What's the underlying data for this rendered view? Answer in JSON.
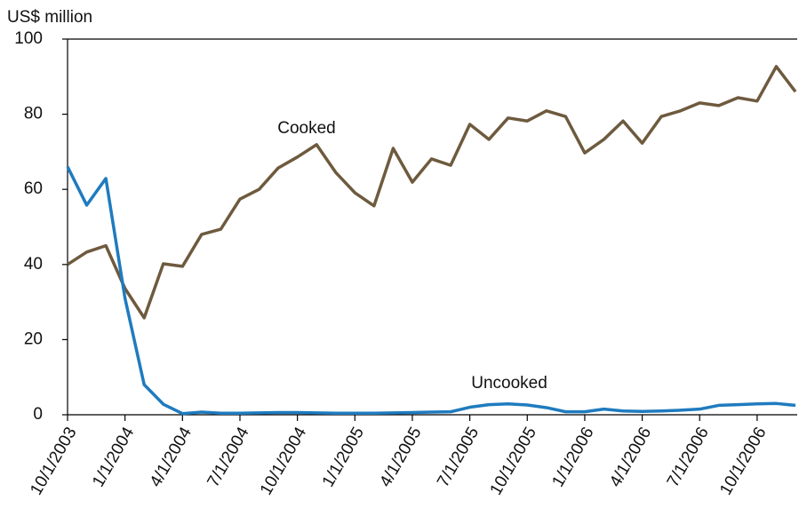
{
  "chart_data": {
    "type": "line",
    "y_label": "US$ million",
    "categories": [
      "10/1/2003",
      null,
      null,
      "1/1/2004",
      null,
      null,
      "4/1/2004",
      null,
      null,
      "7/1/2004",
      null,
      null,
      "10/1/2004",
      null,
      null,
      "1/1/2005",
      null,
      null,
      "4/1/2005",
      null,
      null,
      "7/1/2005",
      null,
      null,
      "10/1/2005",
      null,
      null,
      "1/1/2006",
      null,
      null,
      "4/1/2006",
      null,
      null,
      "7/1/2006",
      null,
      null,
      "10/1/2006",
      null,
      null
    ],
    "series": [
      {
        "name": "Cooked",
        "color": "#6e5a3e",
        "values": [
          40,
          43.3,
          45,
          33.6,
          25.8,
          40.2,
          39.5,
          48,
          49.4,
          57.4,
          60,
          65.7,
          68.6,
          71.9,
          64.5,
          59.1,
          55.6,
          70.9,
          61.9,
          68.1,
          66.4,
          77.3,
          73.3,
          79,
          78.2,
          80.9,
          79.4,
          69.7,
          73.3,
          78.2,
          72.3,
          79.4,
          80.9,
          83,
          82.3,
          84.4,
          83.5,
          92.7,
          86
        ]
      },
      {
        "name": "Uncooked",
        "color": "#1f7bbf",
        "values": [
          66,
          55.8,
          62.9,
          31,
          8,
          2.8,
          0.3,
          0.7,
          0.4,
          0.4,
          0.5,
          0.6,
          0.6,
          0.5,
          0.4,
          0.4,
          0.4,
          0.5,
          0.6,
          0.7,
          0.8,
          2,
          2.7,
          2.9,
          2.6,
          1.9,
          0.8,
          0.8,
          1.5,
          1.0,
          0.9,
          1.0,
          1.2,
          1.5,
          2.5,
          2.7,
          2.9,
          3,
          2.5
        ]
      }
    ],
    "ylim": [
      0,
      100
    ],
    "yticks": [
      0,
      20,
      40,
      60,
      80,
      100
    ]
  }
}
